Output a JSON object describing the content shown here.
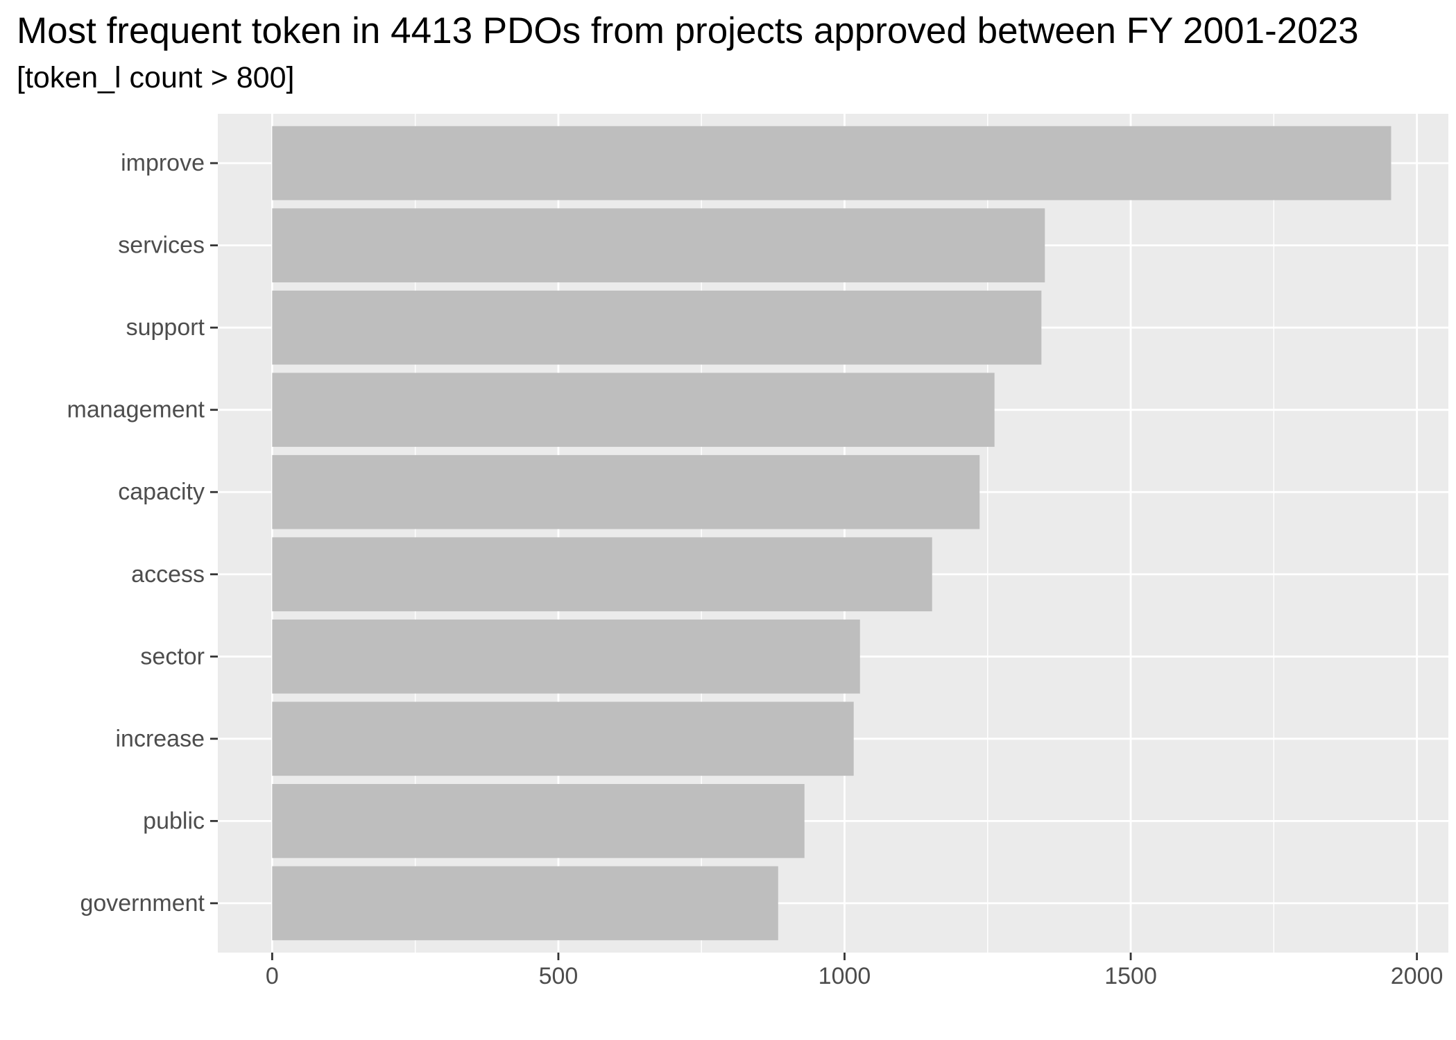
{
  "chart_data": {
    "type": "bar",
    "orientation": "horizontal",
    "title": "Most frequent token in 4413 PDOs from projects approved between FY 2001-2023",
    "subtitle": "[token_l count > 800]",
    "xlabel": "",
    "ylabel": "",
    "categories": [
      "improve",
      "services",
      "support",
      "management",
      "capacity",
      "access",
      "sector",
      "increase",
      "public",
      "government"
    ],
    "values": [
      1955,
      1350,
      1344,
      1262,
      1236,
      1153,
      1027,
      1016,
      930,
      884
    ],
    "xlim": [
      -95,
      2055
    ],
    "xticks": [
      0,
      500,
      1000,
      1500,
      2000
    ],
    "xtick_labels": [
      "0",
      "500",
      "1000",
      "1500",
      "2000"
    ],
    "grid": true,
    "legend": "none",
    "colors": {
      "bar": "#bebebe",
      "panel_background": "#ebebeb",
      "grid": "#ffffff",
      "tick_text": "#4d4d4d",
      "tick_mark": "#333333"
    }
  }
}
